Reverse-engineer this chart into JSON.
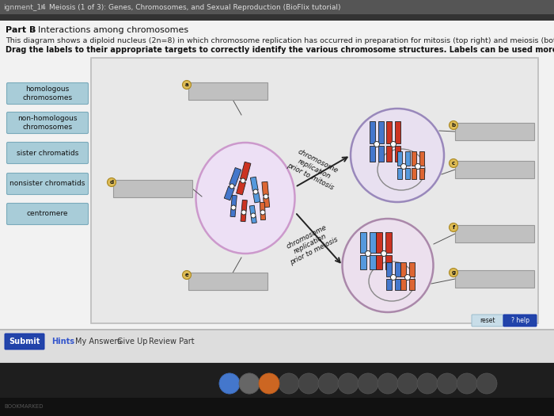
{
  "title_bar_text": "Meiosis (1 of 3): Genes, Chromosomes, and Sexual Reproduction (BioFlix tutorial)",
  "title_prefix": "ignment_14",
  "part_b": "Part B",
  "part_b_rest": " - Interactions among chromosomes",
  "description1": "This diagram shows a diploid nucleus (2n=8) in which chromosome replication has occurred in preparation for mitosis (top right) and meiosis (bottom right).",
  "description2": "Drag the labels to their appropriate targets to correctly identify the various chromosome structures. Labels can be used more than once.",
  "label_buttons": [
    "homologous\nchromosomes",
    "non-homologous\nchromosomes",
    "sister chromatids",
    "nonsister chromatids",
    "centromere"
  ],
  "btn_color": "#a8ccd8",
  "btn_border": "#7aaabb",
  "ans_color": "#c0c0c0",
  "ans_border": "#999999",
  "arrow_text_mitosis": "chromosome\nreplication\nprior to mitosis",
  "arrow_text_meiosis": "chromosome\nreplication\nprior to meiosis",
  "panel_bg": "#e8e8e8",
  "panel_border": "#bbbbbb",
  "content_bg": "#f0f0f0",
  "top_bar_color": "#555555",
  "sep_bar_color": "#333333",
  "dock_color": "#282828",
  "blue_chrom": "#4477cc",
  "red_chrom": "#cc3322",
  "blue2_chrom": "#5599dd",
  "orange_chrom": "#dd6633",
  "main_oval_fill": "#ede0f5",
  "main_oval_edge": "#cc99cc",
  "mitosis_oval_fill": "#e8e0f0",
  "mitosis_oval_edge": "#9988bb",
  "meiosis_oval_fill": "#ece0ee",
  "meiosis_oval_edge": "#aa88aa",
  "label_dot_color": "#ccaa44",
  "submit_color": "#2244aa"
}
